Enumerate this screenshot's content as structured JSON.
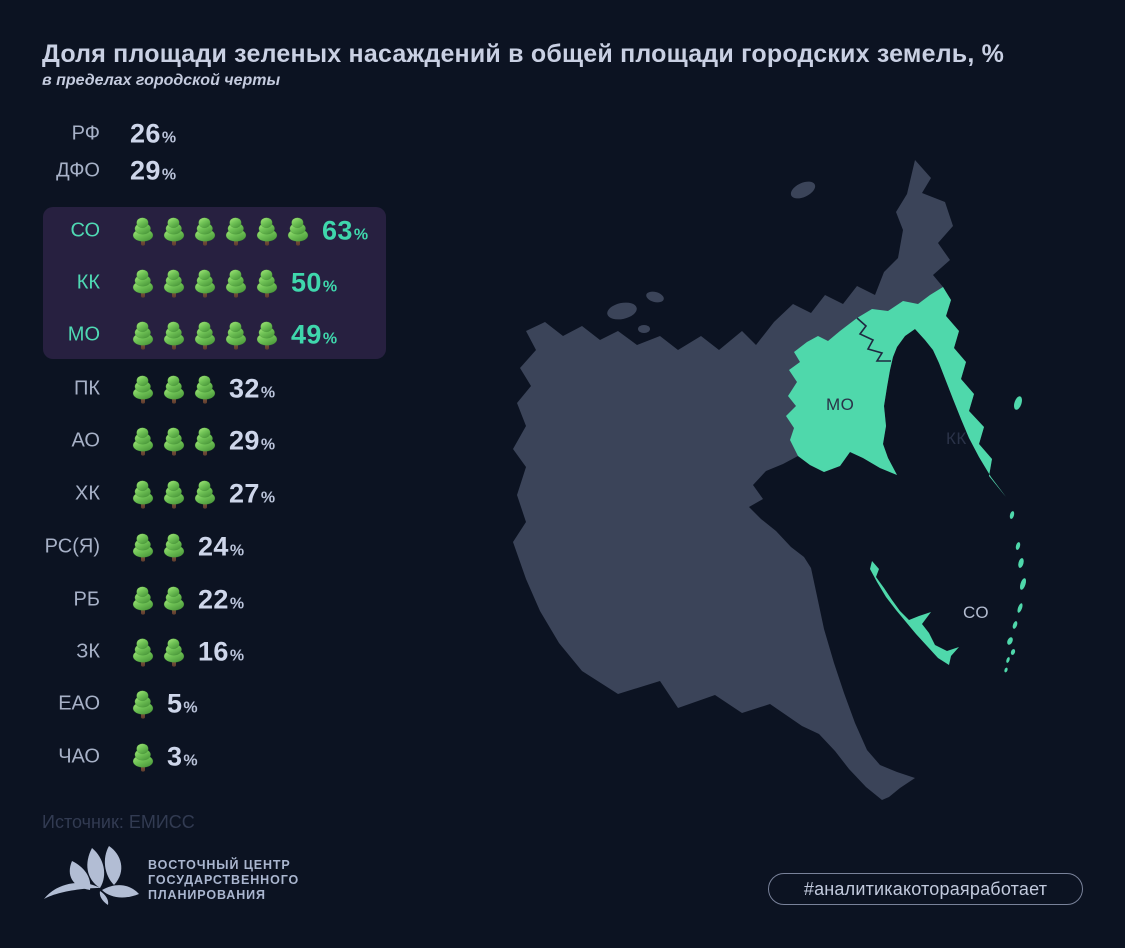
{
  "title": "Доля площади зеленых насаждений в общей площади городских земель, %",
  "subtitle": "в пределах городской черты",
  "chart_data": {
    "type": "pictogram",
    "unit": "%",
    "icon": "tree",
    "icon_value_percent": 10,
    "categories": [
      "РФ",
      "ДФО",
      "СО",
      "КК",
      "МО",
      "ПК",
      "АО",
      "ХК",
      "РС(Я)",
      "РБ",
      "ЗК",
      "ЕАО",
      "ЧАО"
    ],
    "values": [
      26,
      29,
      63,
      50,
      49,
      32,
      29,
      27,
      24,
      22,
      16,
      5,
      3
    ],
    "rows": [
      {
        "label": "РФ",
        "value": 26,
        "trees": 0,
        "highlighted": false
      },
      {
        "label": "ДФО",
        "value": 29,
        "trees": 0,
        "highlighted": false
      },
      {
        "label": "СО",
        "value": 63,
        "trees": 6,
        "highlighted": true
      },
      {
        "label": "КК",
        "value": 50,
        "trees": 5,
        "highlighted": true
      },
      {
        "label": "МО",
        "value": 49,
        "trees": 5,
        "highlighted": true
      },
      {
        "label": "ПК",
        "value": 32,
        "trees": 3,
        "highlighted": false
      },
      {
        "label": "АО",
        "value": 29,
        "trees": 3,
        "highlighted": false
      },
      {
        "label": "ХК",
        "value": 27,
        "trees": 3,
        "highlighted": false
      },
      {
        "label": "РС(Я)",
        "value": 24,
        "trees": 2,
        "highlighted": false
      },
      {
        "label": "РБ",
        "value": 22,
        "trees": 2,
        "highlighted": false
      },
      {
        "label": "ЗК",
        "value": 16,
        "trees": 2,
        "highlighted": false
      },
      {
        "label": "ЕАО",
        "value": 5,
        "trees": 1,
        "highlighted": false
      },
      {
        "label": "ЧАО",
        "value": 3,
        "trees": 1,
        "highlighted": false
      }
    ],
    "highlighted_regions": [
      "СО",
      "КК",
      "МО"
    ],
    "legend_position": "none",
    "grid": false
  },
  "map": {
    "labels": [
      {
        "text": "МО",
        "on_highlight": true
      },
      {
        "text": "КК",
        "on_highlight": true
      },
      {
        "text": "СО",
        "on_highlight": false
      }
    ]
  },
  "footer": {
    "source": "Источник: ЕМИСС",
    "logo_lines": [
      "ВОСТОЧНЫЙ ЦЕНТР",
      "ГОСУДАРСТВЕННОГО",
      "ПЛАНИРОВАНИЯ"
    ],
    "hashtag": "#аналитикакотораяработает"
  },
  "colors": {
    "background": "#0c1322",
    "land": "#3b4459",
    "region_highlight": "#4fd8ab",
    "accent_text": "#3fd7ac",
    "highlight_box": "#272040",
    "text_primary": "#c9d0e3",
    "text_secondary": "#a7b1c7",
    "source_text": "#323b52"
  }
}
